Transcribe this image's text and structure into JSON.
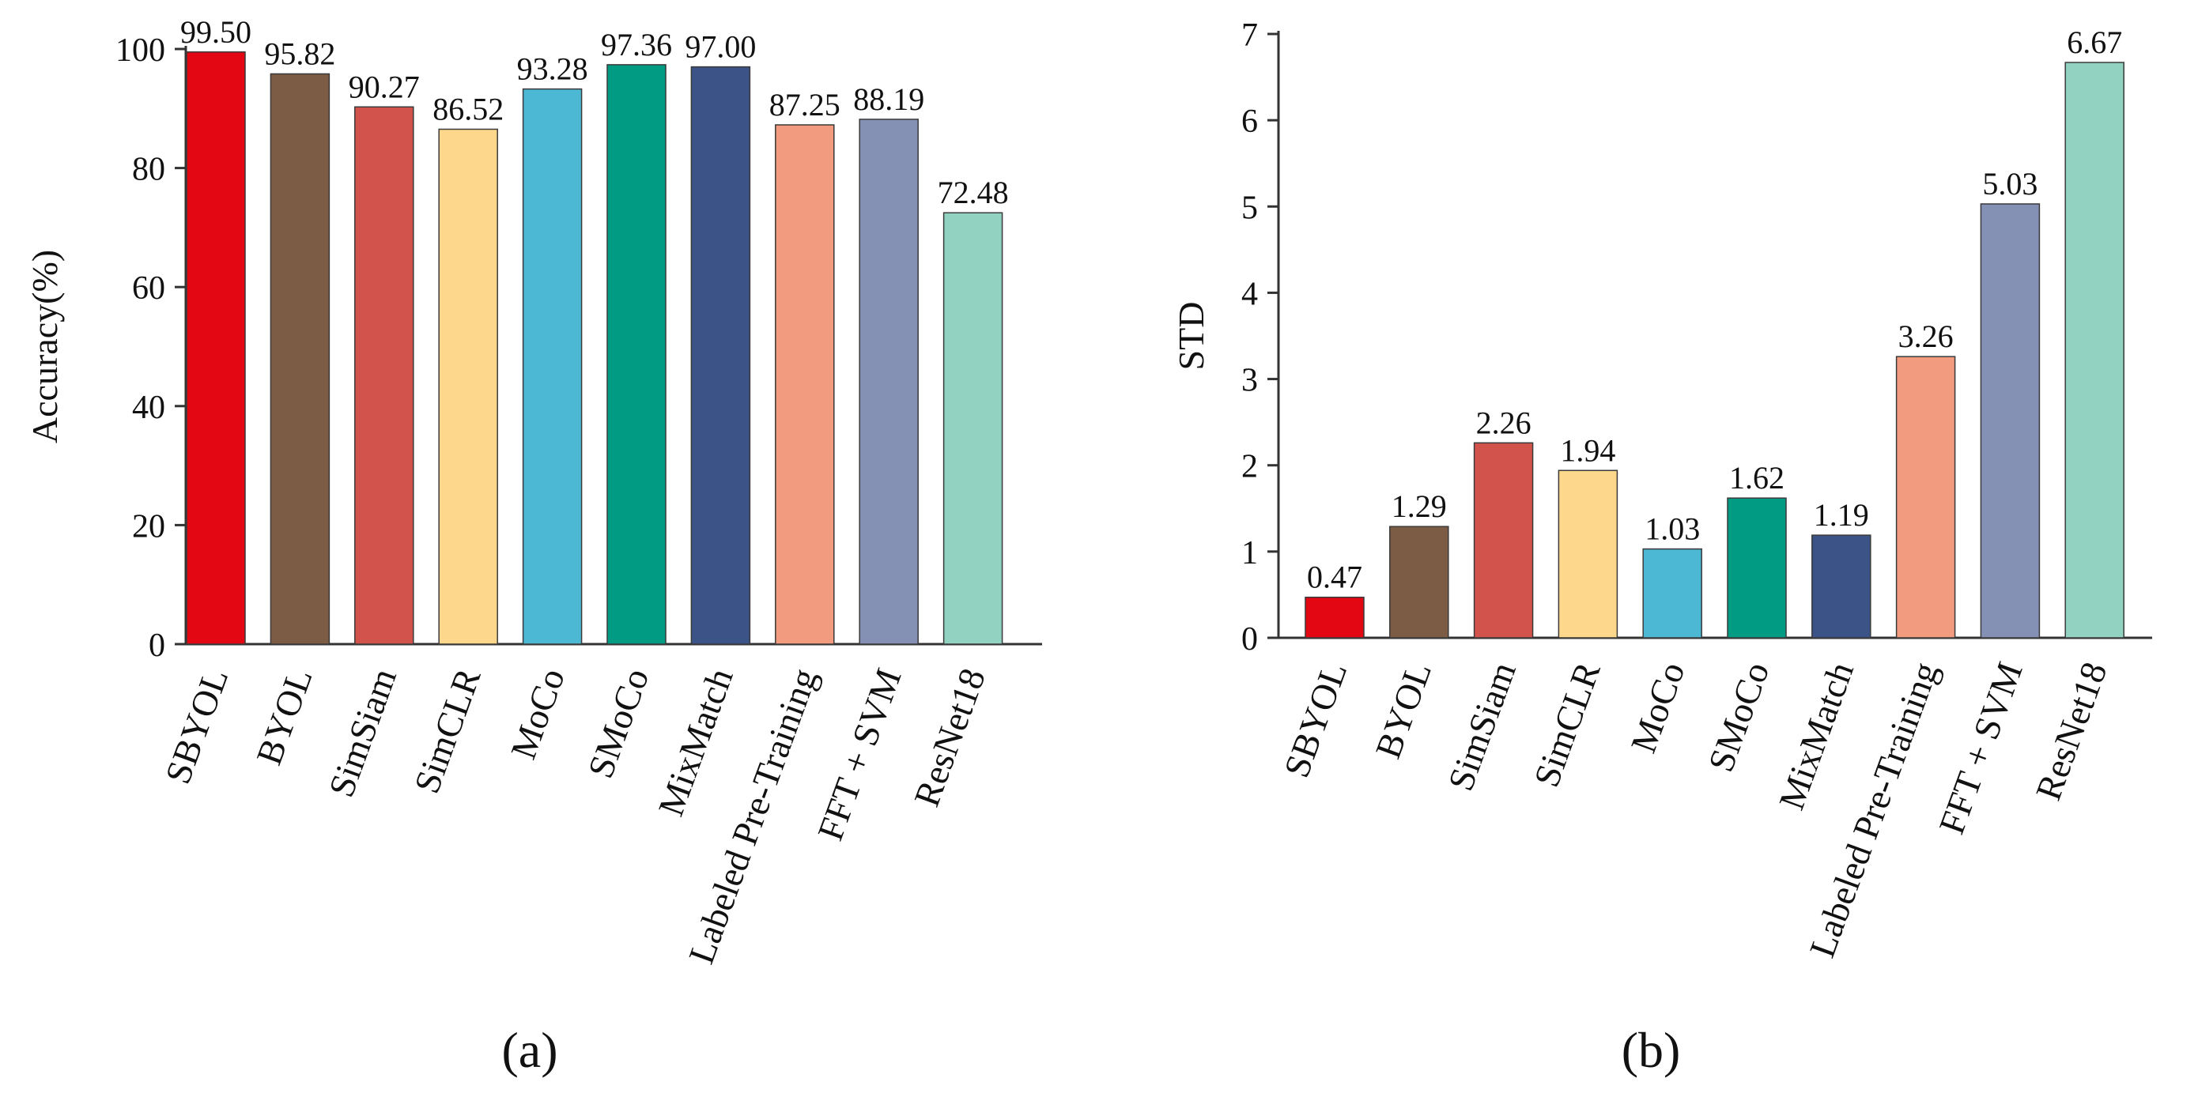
{
  "figure": {
    "panel_a_label": "(a)",
    "panel_b_label": "(b)"
  },
  "chart_data": [
    {
      "type": "bar",
      "panel": "a",
      "title": "",
      "xlabel": "",
      "ylabel": "Accuracy(%)",
      "ylim": [
        0,
        100
      ],
      "yticks": [
        0,
        20,
        40,
        60,
        80,
        100
      ],
      "categories": [
        "SBYOL",
        "BYOL",
        "SimSiam",
        "SimCLR",
        "MoCo",
        "SMoCo",
        "MixMatch",
        "Labeled Pre-Training",
        "FFT + SVM",
        "ResNet18"
      ],
      "values": [
        99.5,
        95.82,
        90.27,
        86.52,
        93.28,
        97.36,
        97.0,
        87.25,
        88.19,
        72.48
      ],
      "value_labels": [
        "99.50",
        "95.82",
        "90.27",
        "86.52",
        "93.28",
        "97.36",
        "97.00",
        "87.25",
        "88.19",
        "72.48"
      ],
      "colors": [
        "#e30613",
        "#7d5c45",
        "#d1534b",
        "#fdd88c",
        "#4db8d4",
        "#009b82",
        "#3c5388",
        "#f29b7e",
        "#8491b4",
        "#91d2c1"
      ],
      "grid": false
    },
    {
      "type": "bar",
      "panel": "b",
      "title": "",
      "xlabel": "",
      "ylabel": "STD",
      "ylim": [
        0,
        7
      ],
      "yticks": [
        0,
        1,
        2,
        3,
        4,
        5,
        6,
        7
      ],
      "categories": [
        "SBYOL",
        "BYOL",
        "SimSiam",
        "SimCLR",
        "MoCo",
        "SMoCo",
        "MixMatch",
        "Labeled Pre-Training",
        "FFT + SVM",
        "ResNet18"
      ],
      "values": [
        0.47,
        1.29,
        2.26,
        1.94,
        1.03,
        1.62,
        1.19,
        3.26,
        5.03,
        6.67
      ],
      "value_labels": [
        "0.47",
        "1.29",
        "2.26",
        "1.94",
        "1.03",
        "1.62",
        "1.19",
        "3.26",
        "5.03",
        "6.67"
      ],
      "colors": [
        "#e30613",
        "#7d5c45",
        "#d1534b",
        "#fdd88c",
        "#4db8d4",
        "#009b82",
        "#3c5388",
        "#f29b7e",
        "#8491b4",
        "#91d2c1"
      ],
      "grid": false
    }
  ]
}
